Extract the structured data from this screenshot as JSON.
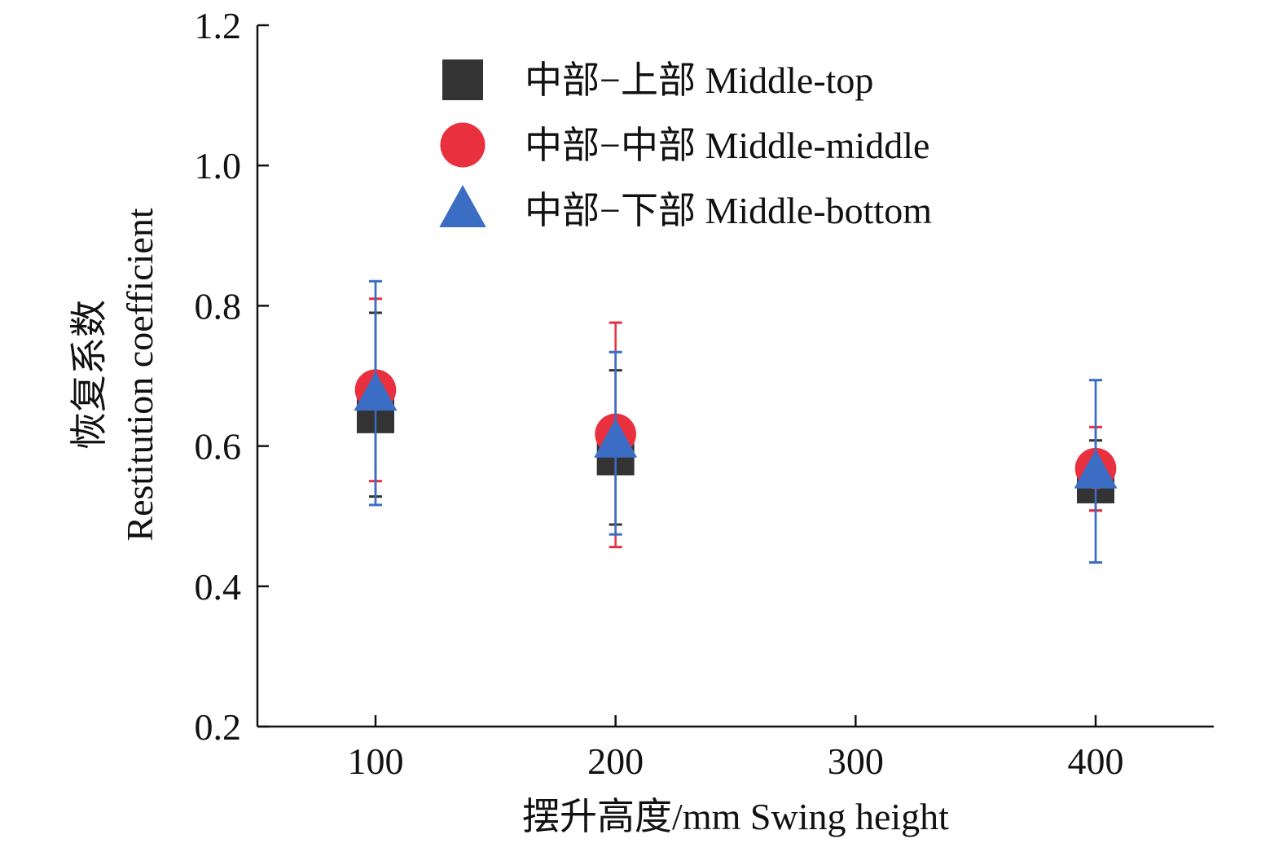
{
  "chart_data": {
    "type": "scatter",
    "title": "",
    "xlabel": "摆升高度/mm Swing height",
    "ylabel_cn": "恢复系数",
    "ylabel_en": "Restitution coefficient",
    "xlim": [
      50,
      450
    ],
    "ylim": [
      0.2,
      1.2
    ],
    "x_ticks": [
      100,
      200,
      300,
      400
    ],
    "x_tick_labels": [
      "100",
      "200",
      "300",
      "400"
    ],
    "y_ticks": [
      0.2,
      0.4,
      0.6,
      0.8,
      1.0,
      1.2
    ],
    "y_tick_labels": [
      "0.2",
      "0.4",
      "0.6",
      "0.8",
      "1.0",
      "1.2"
    ],
    "grid": false,
    "legend_position": "top-center",
    "series": [
      {
        "name": "中部−上部 Middle-top",
        "marker": "square",
        "color": "#333333",
        "x": [
          100,
          200,
          400
        ],
        "y": [
          0.645,
          0.585,
          0.545
        ],
        "err_low": [
          0.528,
          0.488,
          0.508
        ],
        "err_high": [
          0.79,
          0.708,
          0.608
        ]
      },
      {
        "name": "中部−中部 Middle-middle",
        "marker": "circle",
        "color": "#e8303f",
        "x": [
          100,
          200,
          400
        ],
        "y": [
          0.68,
          0.617,
          0.568
        ],
        "err_low": [
          0.55,
          0.456,
          0.508
        ],
        "err_high": [
          0.81,
          0.776,
          0.627
        ]
      },
      {
        "name": "中部−下部 Middle-bottom",
        "marker": "triangle",
        "color": "#3b6dc4",
        "x": [
          100,
          200,
          400
        ],
        "y": [
          0.673,
          0.606,
          0.562
        ],
        "err_low": [
          0.516,
          0.474,
          0.434
        ],
        "err_high": [
          0.835,
          0.734,
          0.694
        ]
      }
    ]
  }
}
